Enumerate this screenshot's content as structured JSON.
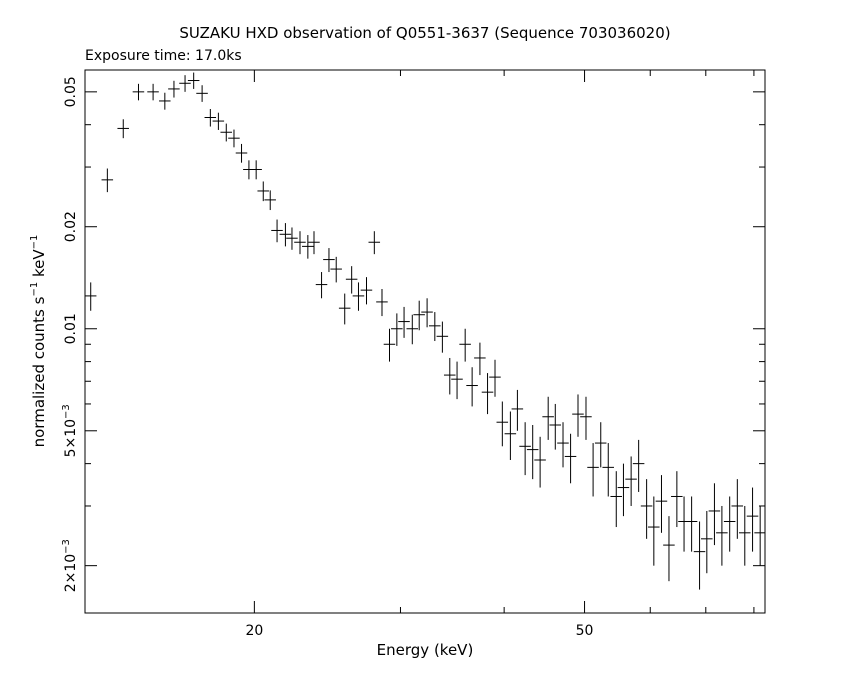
{
  "title": "SUZAKU HXD observation of Q0551-3637 (Sequence 703036020)",
  "subtitle": "Exposure time: 17.0ks",
  "chart_data": {
    "type": "scatter",
    "xlabel": "Energy (keV)",
    "ylabel_main": "normalized counts s",
    "ylabel_sup1": "−1",
    "ylabel_mid": " keV",
    "ylabel_sup2": "−1",
    "xscale": "log",
    "yscale": "log",
    "xlim": [
      12.5,
      82.5
    ],
    "ylim": [
      0.00145,
      0.058
    ],
    "grid": false,
    "xtick_labels": [
      {
        "value": 20,
        "label": "20"
      },
      {
        "value": 50,
        "label": "50"
      }
    ],
    "ytick_labels": [
      {
        "value": 0.05,
        "base": "0.05",
        "exp": ""
      },
      {
        "value": 0.02,
        "base": "0.02",
        "exp": ""
      },
      {
        "value": 0.01,
        "base": "0.01",
        "exp": ""
      },
      {
        "value": 0.005,
        "base": "5×10",
        "exp": "−3"
      },
      {
        "value": 0.002,
        "base": "2×10",
        "exp": "−3"
      }
    ],
    "series": [
      {
        "x": [
          12.7,
          13.3,
          13.9,
          14.5,
          15.1,
          15.6,
          16.0,
          16.5,
          16.9,
          17.3,
          17.7,
          18.1,
          18.5,
          18.9,
          19.3,
          19.7,
          20.1,
          20.5,
          20.9,
          21.3,
          21.8,
          22.2,
          22.7,
          23.2,
          23.6,
          24.1,
          24.6,
          25.1,
          25.7,
          26.2,
          26.7,
          27.3,
          27.9,
          28.5,
          29.1,
          29.7,
          30.3,
          31.0,
          31.6,
          32.3,
          33.0,
          33.7,
          34.4,
          35.1,
          35.9,
          36.6,
          37.4,
          38.2,
          39.0,
          39.8,
          40.7,
          41.5,
          42.4,
          43.3,
          44.2,
          45.2,
          46.1,
          47.1,
          48.1,
          49.1,
          50.2,
          51.2,
          52.3,
          53.4,
          54.6,
          55.7,
          56.9,
          58.1,
          59.4,
          60.6,
          61.9,
          63.2,
          64.6,
          65.9,
          67.3,
          68.8,
          70.2,
          71.7,
          73.2,
          74.8,
          76.4,
          78.0,
          79.7,
          81.4
        ],
        "y": [
          0.0125,
          0.0275,
          0.039,
          0.05,
          0.05,
          0.047,
          0.051,
          0.053,
          0.054,
          0.0495,
          0.042,
          0.041,
          0.038,
          0.0365,
          0.033,
          0.0295,
          0.0295,
          0.0255,
          0.024,
          0.0195,
          0.019,
          0.0185,
          0.018,
          0.0175,
          0.018,
          0.0135,
          0.016,
          0.015,
          0.0115,
          0.014,
          0.0125,
          0.013,
          0.018,
          0.012,
          0.009,
          0.01,
          0.0105,
          0.01,
          0.011,
          0.0112,
          0.0102,
          0.0095,
          0.0073,
          0.0071,
          0.009,
          0.0068,
          0.0082,
          0.0065,
          0.0072,
          0.0053,
          0.0049,
          0.0058,
          0.0045,
          0.0044,
          0.0041,
          0.0055,
          0.0052,
          0.0046,
          0.0042,
          0.0056,
          0.0055,
          0.0039,
          0.0046,
          0.0039,
          0.0032,
          0.0034,
          0.0036,
          0.004,
          0.003,
          0.0026,
          0.0031,
          0.0023,
          0.0032,
          0.0027,
          0.0027,
          0.0022,
          0.0024,
          0.0029,
          0.0025,
          0.0027,
          0.003,
          0.0025,
          0.0028,
          0.0025
        ],
        "yerr": [
          0.0012,
          0.0022,
          0.0025,
          0.0028,
          0.0028,
          0.0027,
          0.0029,
          0.003,
          0.003,
          0.0028,
          0.0025,
          0.0024,
          0.0023,
          0.0022,
          0.0021,
          0.0019,
          0.0019,
          0.0017,
          0.0016,
          0.0015,
          0.0015,
          0.0014,
          0.0014,
          0.0014,
          0.0014,
          0.0012,
          0.0013,
          0.0013,
          0.0012,
          0.0013,
          0.0012,
          0.0012,
          0.0014,
          0.0011,
          0.001,
          0.0011,
          0.0011,
          0.001,
          0.0011,
          0.0011,
          0.001,
          0.001,
          0.0009,
          0.0009,
          0.001,
          0.0009,
          0.0009,
          0.0009,
          0.0009,
          0.0008,
          0.0008,
          0.0008,
          0.0008,
          0.0008,
          0.0007,
          0.0008,
          0.0008,
          0.0007,
          0.0007,
          0.0008,
          0.0008,
          0.0007,
          0.0007,
          0.0007,
          0.0006,
          0.0006,
          0.0006,
          0.0007,
          0.0006,
          0.0006,
          0.0006,
          0.0005,
          0.0006,
          0.0005,
          0.0005,
          0.0005,
          0.0005,
          0.0006,
          0.0005,
          0.0005,
          0.0006,
          0.0005,
          0.0006,
          0.0005
        ],
        "xerr_frac": 0.016
      }
    ]
  }
}
